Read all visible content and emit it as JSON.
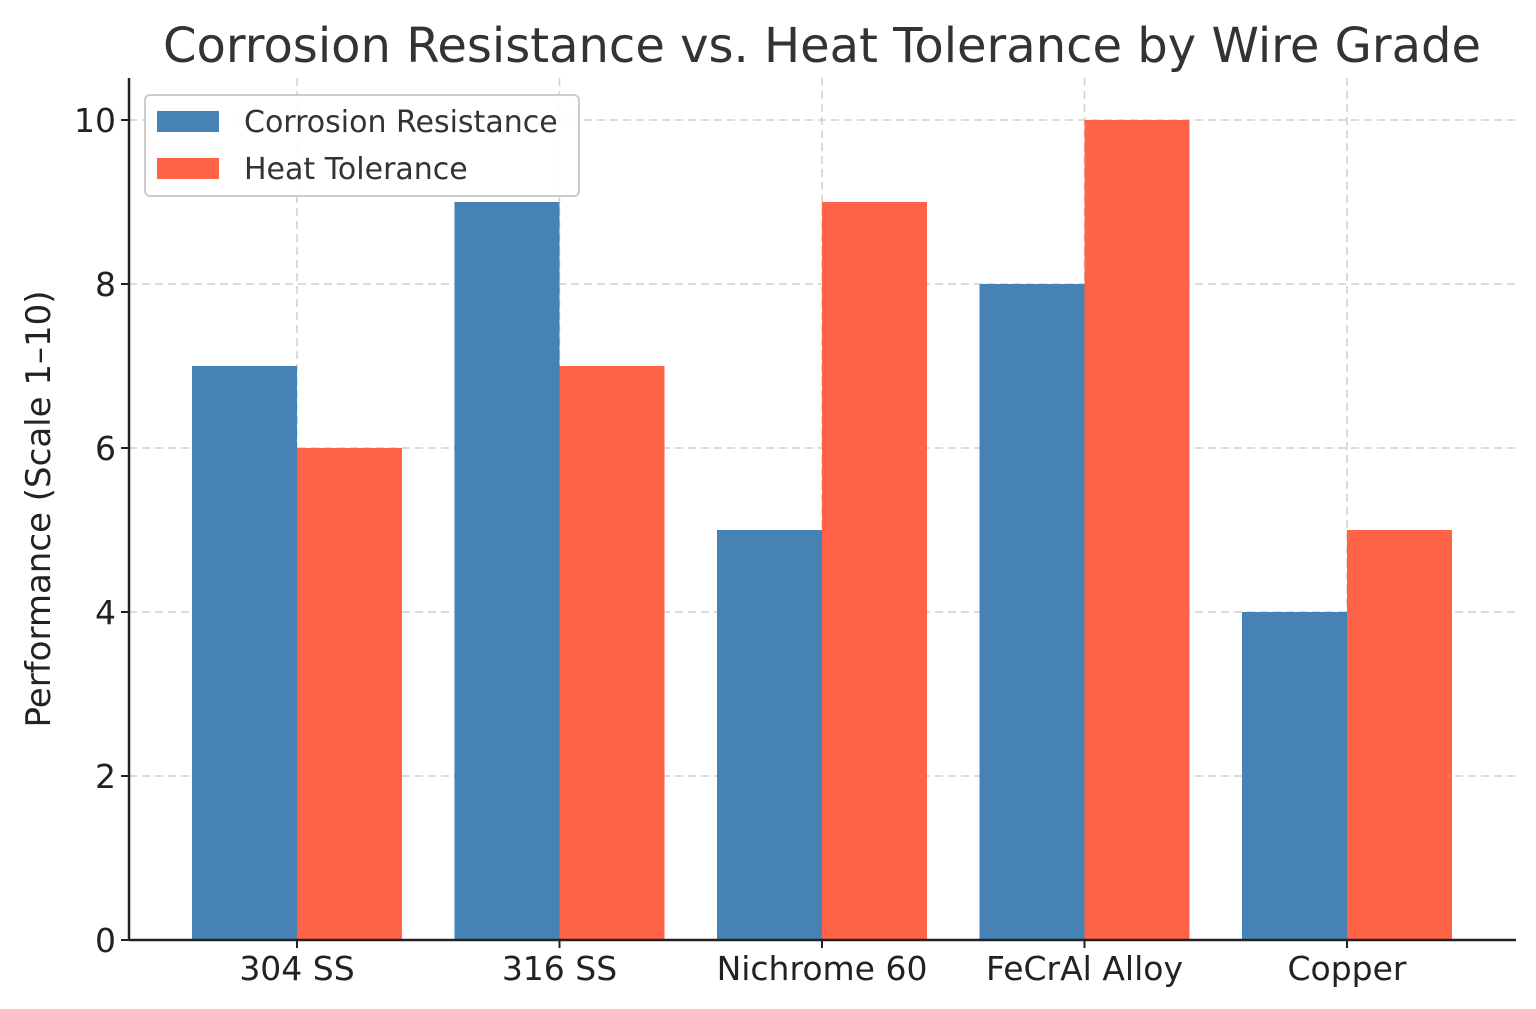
{
  "chart_data": {
    "type": "bar",
    "title": "Corrosion Resistance vs. Heat Tolerance by Wire Grade",
    "xlabel": "",
    "ylabel": "Performance (Scale 1–10)",
    "categories": [
      "304 SS",
      "316 SS",
      "Nichrome 60",
      "FeCrAl Alloy",
      "Copper"
    ],
    "series": [
      {
        "name": "Corrosion Resistance",
        "color": "#4682B4",
        "values": [
          7,
          9,
          5,
          8,
          4
        ]
      },
      {
        "name": "Heat Tolerance",
        "color": "#FF6347",
        "values": [
          6,
          7,
          9,
          10,
          5
        ]
      }
    ],
    "ylim": [
      0,
      10.5
    ],
    "yticks": [
      0,
      2,
      4,
      6,
      8,
      10
    ],
    "grid": true,
    "legend_position": "top-left"
  }
}
